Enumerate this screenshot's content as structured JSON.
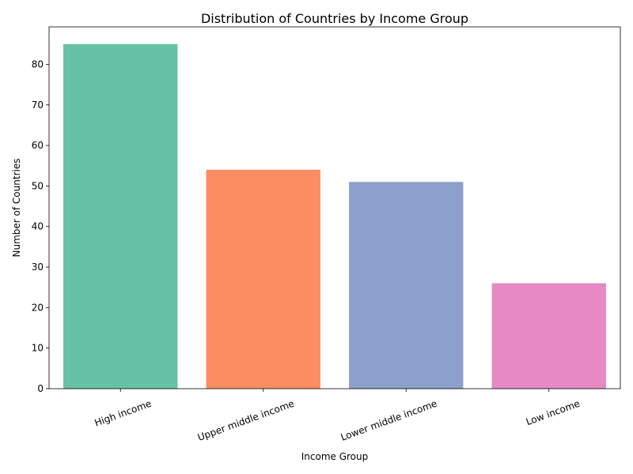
{
  "chart_data": {
    "type": "bar",
    "title": "Distribution of Countries by Income Group",
    "xlabel": "Income Group",
    "ylabel": "Number of Countries",
    "categories": [
      "High income",
      "Upper middle income",
      "Lower middle income",
      "Low income"
    ],
    "values": [
      85,
      54,
      51,
      26
    ],
    "colors": [
      "#66c2a5",
      "#fc8d62",
      "#8da0cb",
      "#e78ac3"
    ],
    "ylim": [
      0,
      89.25
    ],
    "yticks": [
      0,
      10,
      20,
      30,
      40,
      50,
      60,
      70,
      80
    ],
    "grid": false,
    "legend": "none"
  }
}
